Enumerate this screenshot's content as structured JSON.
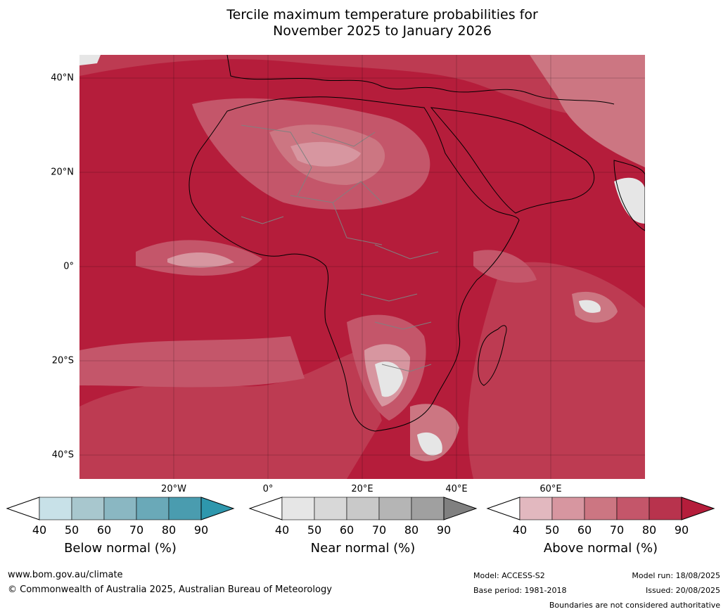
{
  "title": {
    "line1": "Tercile maximum temperature probabilities for",
    "line2": "November 2025 to January 2026"
  },
  "map": {
    "region": "Africa",
    "lat_labels": [
      "40°N",
      "20°N",
      "0°",
      "20°S",
      "40°S"
    ],
    "lon_labels": [
      "20°W",
      "0°",
      "20°E",
      "40°E",
      "60°E"
    ],
    "dominant_category": "Above normal",
    "colors": {
      "above_90": "#b51d3b",
      "above_80": "#bd3b52",
      "above_70": "#c4566a",
      "above_60": "#cc7682",
      "above_50": "#d796a0",
      "above_40": "#e2b8bf",
      "near_low": "#e6e6e6",
      "below_50": "#a9c9d2",
      "land_border": "#808080",
      "coastline": "#000000"
    }
  },
  "colorbars": [
    {
      "label": "Below normal (%)",
      "ticks": [
        "40",
        "50",
        "60",
        "70",
        "80",
        "90"
      ],
      "colors": [
        "#c8e1e8",
        "#a8c7ce",
        "#8ab7c2",
        "#6aa9b8",
        "#4a9caf"
      ],
      "low_extend": "#ffffff",
      "high_extend": "#2e97ad"
    },
    {
      "label": "Near normal (%)",
      "ticks": [
        "40",
        "50",
        "60",
        "70",
        "80",
        "90"
      ],
      "colors": [
        "#e6e6e6",
        "#d8d8d8",
        "#c9c9c9",
        "#b5b5b5",
        "#a0a0a0"
      ],
      "low_extend": "#ffffff",
      "high_extend": "#808080"
    },
    {
      "label": "Above normal (%)",
      "ticks": [
        "40",
        "50",
        "60",
        "70",
        "80",
        "90"
      ],
      "colors": [
        "#e2b8bf",
        "#d796a0",
        "#cc7682",
        "#c4566a",
        "#b8334d"
      ],
      "low_extend": "#ffffff",
      "high_extend": "#b51d3b"
    }
  ],
  "footer": {
    "url": "www.bom.gov.au/climate",
    "copyright": "© Commonwealth of Australia 2025, Australian Bureau of Meteorology",
    "model": "Model: ACCESS-S2",
    "base_period": "Base period: 1981-2018",
    "model_run": "Model run: 18/08/2025",
    "issued": "Issued: 20/08/2025",
    "disclaimer": "Boundaries are not considered authoritative"
  }
}
